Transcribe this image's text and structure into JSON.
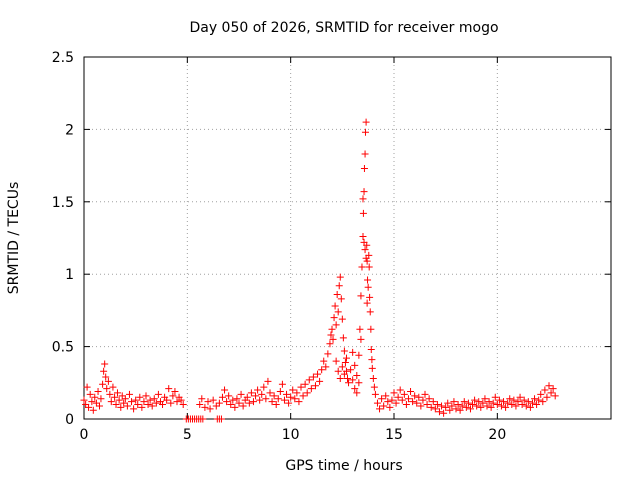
{
  "chart_data": {
    "type": "scatter",
    "title": "Day 050 of 2026, SRMTID for receiver mogo",
    "xlabel": "GPS time / hours",
    "ylabel": "SRMTID / TECUs",
    "xlim": [
      0,
      25.5
    ],
    "ylim": [
      0,
      2.5
    ],
    "xticks": [
      0,
      5,
      10,
      15,
      20
    ],
    "xtick_labels": [
      "0",
      "5",
      "10",
      "15",
      "20"
    ],
    "yticks": [
      0,
      0.5,
      1,
      1.5,
      2,
      2.5
    ],
    "ytick_labels": [
      "0",
      "0.5",
      "1",
      "1.5",
      "2",
      "2.5"
    ],
    "grid": true,
    "marker": "+",
    "series": [
      {
        "name": "SRMTID",
        "color": "#ff0000",
        "points": [
          [
            0.0,
            0.13
          ],
          [
            0.08,
            0.1
          ],
          [
            0.15,
            0.22
          ],
          [
            0.22,
            0.08
          ],
          [
            0.3,
            0.17
          ],
          [
            0.38,
            0.12
          ],
          [
            0.45,
            0.06
          ],
          [
            0.52,
            0.15
          ],
          [
            0.6,
            0.11
          ],
          [
            0.68,
            0.19
          ],
          [
            0.75,
            0.09
          ],
          [
            0.82,
            0.14
          ],
          [
            0.9,
            0.24
          ],
          [
            0.95,
            0.33
          ],
          [
            1.0,
            0.38
          ],
          [
            1.05,
            0.29
          ],
          [
            1.1,
            0.21
          ],
          [
            1.18,
            0.26
          ],
          [
            1.25,
            0.17
          ],
          [
            1.32,
            0.12
          ],
          [
            1.4,
            0.22
          ],
          [
            1.48,
            0.15
          ],
          [
            1.55,
            0.1
          ],
          [
            1.62,
            0.18
          ],
          [
            1.7,
            0.13
          ],
          [
            1.78,
            0.08
          ],
          [
            1.85,
            0.16
          ],
          [
            1.92,
            0.11
          ],
          [
            2.0,
            0.14
          ],
          [
            2.1,
            0.09
          ],
          [
            2.2,
            0.17
          ],
          [
            2.3,
            0.12
          ],
          [
            2.4,
            0.07
          ],
          [
            2.5,
            0.13
          ],
          [
            2.6,
            0.1
          ],
          [
            2.7,
            0.15
          ],
          [
            2.8,
            0.08
          ],
          [
            2.9,
            0.12
          ],
          [
            3.0,
            0.16
          ],
          [
            3.1,
            0.1
          ],
          [
            3.2,
            0.13
          ],
          [
            3.3,
            0.09
          ],
          [
            3.4,
            0.14
          ],
          [
            3.5,
            0.11
          ],
          [
            3.6,
            0.17
          ],
          [
            3.7,
            0.12
          ],
          [
            3.8,
            0.1
          ],
          [
            3.9,
            0.15
          ],
          [
            4.0,
            0.13
          ],
          [
            4.1,
            0.21
          ],
          [
            4.2,
            0.11
          ],
          [
            4.3,
            0.16
          ],
          [
            4.4,
            0.19
          ],
          [
            4.5,
            0.12
          ],
          [
            4.6,
            0.15
          ],
          [
            4.7,
            0.13
          ],
          [
            4.8,
            0.1
          ],
          [
            4.95,
            0.0
          ],
          [
            5.05,
            0.0
          ],
          [
            5.15,
            0.0
          ],
          [
            5.25,
            0.0
          ],
          [
            5.35,
            0.0
          ],
          [
            5.45,
            0.0
          ],
          [
            5.55,
            0.0
          ],
          [
            5.65,
            0.0
          ],
          [
            5.75,
            0.0
          ],
          [
            6.45,
            0.0
          ],
          [
            6.55,
            0.0
          ],
          [
            6.65,
            0.0
          ],
          [
            5.6,
            0.1
          ],
          [
            5.7,
            0.14
          ],
          [
            5.85,
            0.08
          ],
          [
            6.0,
            0.12
          ],
          [
            6.1,
            0.07
          ],
          [
            6.25,
            0.13
          ],
          [
            6.4,
            0.09
          ],
          [
            6.55,
            0.11
          ],
          [
            6.7,
            0.15
          ],
          [
            6.8,
            0.2
          ],
          [
            6.9,
            0.12
          ],
          [
            7.0,
            0.16
          ],
          [
            7.1,
            0.1
          ],
          [
            7.2,
            0.13
          ],
          [
            7.3,
            0.08
          ],
          [
            7.4,
            0.14
          ],
          [
            7.5,
            0.11
          ],
          [
            7.6,
            0.17
          ],
          [
            7.7,
            0.09
          ],
          [
            7.8,
            0.13
          ],
          [
            7.9,
            0.15
          ],
          [
            8.0,
            0.11
          ],
          [
            8.1,
            0.18
          ],
          [
            8.2,
            0.12
          ],
          [
            8.3,
            0.16
          ],
          [
            8.4,
            0.2
          ],
          [
            8.5,
            0.13
          ],
          [
            8.6,
            0.17
          ],
          [
            8.7,
            0.22
          ],
          [
            8.8,
            0.14
          ],
          [
            8.9,
            0.26
          ],
          [
            9.0,
            0.18
          ],
          [
            9.1,
            0.12
          ],
          [
            9.2,
            0.16
          ],
          [
            9.3,
            0.1
          ],
          [
            9.4,
            0.14
          ],
          [
            9.5,
            0.19
          ],
          [
            9.6,
            0.24
          ],
          [
            9.7,
            0.13
          ],
          [
            9.8,
            0.17
          ],
          [
            9.9,
            0.11
          ],
          [
            10.0,
            0.15
          ],
          [
            10.1,
            0.2
          ],
          [
            10.2,
            0.14
          ],
          [
            10.3,
            0.18
          ],
          [
            10.4,
            0.12
          ],
          [
            10.5,
            0.22
          ],
          [
            10.6,
            0.16
          ],
          [
            10.7,
            0.24
          ],
          [
            10.8,
            0.18
          ],
          [
            10.9,
            0.27
          ],
          [
            11.0,
            0.21
          ],
          [
            11.1,
            0.29
          ],
          [
            11.2,
            0.23
          ],
          [
            11.3,
            0.31
          ],
          [
            11.4,
            0.26
          ],
          [
            11.5,
            0.34
          ],
          [
            11.6,
            0.4
          ],
          [
            11.7,
            0.36
          ],
          [
            11.8,
            0.45
          ],
          [
            11.9,
            0.52
          ],
          [
            11.95,
            0.58
          ],
          [
            12.0,
            0.62
          ],
          [
            12.05,
            0.55
          ],
          [
            12.1,
            0.7
          ],
          [
            12.15,
            0.78
          ],
          [
            12.2,
            0.65
          ],
          [
            12.25,
            0.86
          ],
          [
            12.3,
            0.74
          ],
          [
            12.35,
            0.92
          ],
          [
            12.4,
            0.98
          ],
          [
            12.45,
            0.83
          ],
          [
            12.5,
            0.69
          ],
          [
            12.55,
            0.56
          ],
          [
            12.6,
            0.47
          ],
          [
            12.65,
            0.39
          ],
          [
            12.7,
            0.33
          ],
          [
            12.75,
            0.28
          ],
          [
            12.2,
            0.4
          ],
          [
            12.3,
            0.33
          ],
          [
            12.4,
            0.28
          ],
          [
            12.5,
            0.36
          ],
          [
            12.6,
            0.31
          ],
          [
            12.7,
            0.42
          ],
          [
            12.8,
            0.25
          ],
          [
            12.9,
            0.34
          ],
          [
            13.0,
            0.27
          ],
          [
            13.1,
            0.21
          ],
          [
            13.2,
            0.3
          ],
          [
            13.3,
            0.44
          ],
          [
            13.35,
            0.62
          ],
          [
            13.4,
            0.85
          ],
          [
            13.45,
            1.05
          ],
          [
            13.5,
            1.26
          ],
          [
            13.52,
            1.42
          ],
          [
            13.55,
            1.57
          ],
          [
            13.57,
            1.73
          ],
          [
            13.6,
            1.83
          ],
          [
            13.62,
            1.98
          ],
          [
            13.65,
            2.05
          ],
          [
            13.68,
            1.2
          ],
          [
            13.7,
            1.09
          ],
          [
            13.72,
            0.96
          ],
          [
            13.75,
            0.91
          ],
          [
            13.78,
            1.13
          ],
          [
            13.8,
            1.05
          ],
          [
            13.82,
            0.84
          ],
          [
            13.85,
            0.74
          ],
          [
            13.88,
            0.62
          ],
          [
            13.9,
            0.48
          ],
          [
            13.93,
            0.41
          ],
          [
            13.95,
            0.35
          ],
          [
            14.0,
            0.28
          ],
          [
            14.05,
            0.22
          ],
          [
            13.5,
            1.52
          ],
          [
            13.55,
            1.22
          ],
          [
            13.6,
            1.17
          ],
          [
            13.65,
            1.11
          ],
          [
            13.7,
            0.8
          ],
          [
            13.4,
            0.55
          ],
          [
            13.3,
            0.25
          ],
          [
            13.2,
            0.18
          ],
          [
            13.1,
            0.37
          ],
          [
            13.0,
            0.46
          ],
          [
            14.1,
            0.17
          ],
          [
            14.2,
            0.11
          ],
          [
            14.3,
            0.07
          ],
          [
            14.4,
            0.14
          ],
          [
            14.5,
            0.09
          ],
          [
            14.6,
            0.16
          ],
          [
            14.7,
            0.12
          ],
          [
            14.8,
            0.08
          ],
          [
            14.9,
            0.13
          ],
          [
            15.0,
            0.18
          ],
          [
            15.1,
            0.11
          ],
          [
            15.2,
            0.15
          ],
          [
            15.3,
            0.2
          ],
          [
            15.4,
            0.13
          ],
          [
            15.5,
            0.17
          ],
          [
            15.6,
            0.1
          ],
          [
            15.7,
            0.14
          ],
          [
            15.8,
            0.19
          ],
          [
            15.9,
            0.12
          ],
          [
            16.0,
            0.16
          ],
          [
            16.1,
            0.11
          ],
          [
            16.2,
            0.15
          ],
          [
            16.3,
            0.09
          ],
          [
            16.4,
            0.13
          ],
          [
            16.5,
            0.17
          ],
          [
            16.6,
            0.1
          ],
          [
            16.7,
            0.14
          ],
          [
            16.8,
            0.08
          ],
          [
            16.9,
            0.12
          ],
          [
            17.0,
            0.07
          ],
          [
            17.1,
            0.1
          ],
          [
            17.2,
            0.05
          ],
          [
            17.3,
            0.09
          ],
          [
            17.4,
            0.04
          ],
          [
            17.5,
            0.08
          ],
          [
            17.6,
            0.11
          ],
          [
            17.7,
            0.06
          ],
          [
            17.8,
            0.09
          ],
          [
            17.9,
            0.12
          ],
          [
            18.0,
            0.07
          ],
          [
            18.1,
            0.1
          ],
          [
            18.2,
            0.06
          ],
          [
            18.3,
            0.09
          ],
          [
            18.4,
            0.12
          ],
          [
            18.5,
            0.08
          ],
          [
            18.6,
            0.11
          ],
          [
            18.7,
            0.07
          ],
          [
            18.8,
            0.1
          ],
          [
            18.9,
            0.13
          ],
          [
            19.0,
            0.09
          ],
          [
            19.1,
            0.12
          ],
          [
            19.2,
            0.08
          ],
          [
            19.3,
            0.11
          ],
          [
            19.4,
            0.14
          ],
          [
            19.5,
            0.09
          ],
          [
            19.6,
            0.12
          ],
          [
            19.7,
            0.08
          ],
          [
            19.8,
            0.11
          ],
          [
            19.9,
            0.15
          ],
          [
            20.0,
            0.1
          ],
          [
            20.1,
            0.13
          ],
          [
            20.2,
            0.09
          ],
          [
            20.3,
            0.12
          ],
          [
            20.4,
            0.08
          ],
          [
            20.5,
            0.11
          ],
          [
            20.6,
            0.14
          ],
          [
            20.7,
            0.1
          ],
          [
            20.8,
            0.13
          ],
          [
            20.9,
            0.09
          ],
          [
            21.0,
            0.12
          ],
          [
            21.1,
            0.15
          ],
          [
            21.2,
            0.1
          ],
          [
            21.3,
            0.13
          ],
          [
            21.4,
            0.09
          ],
          [
            21.5,
            0.12
          ],
          [
            21.6,
            0.08
          ],
          [
            21.7,
            0.11
          ],
          [
            21.8,
            0.14
          ],
          [
            21.9,
            0.1
          ],
          [
            22.0,
            0.13
          ],
          [
            22.1,
            0.17
          ],
          [
            22.2,
            0.12
          ],
          [
            22.3,
            0.2
          ],
          [
            22.4,
            0.15
          ],
          [
            22.5,
            0.23
          ],
          [
            22.6,
            0.18
          ],
          [
            22.7,
            0.21
          ],
          [
            22.8,
            0.16
          ]
        ]
      }
    ]
  }
}
